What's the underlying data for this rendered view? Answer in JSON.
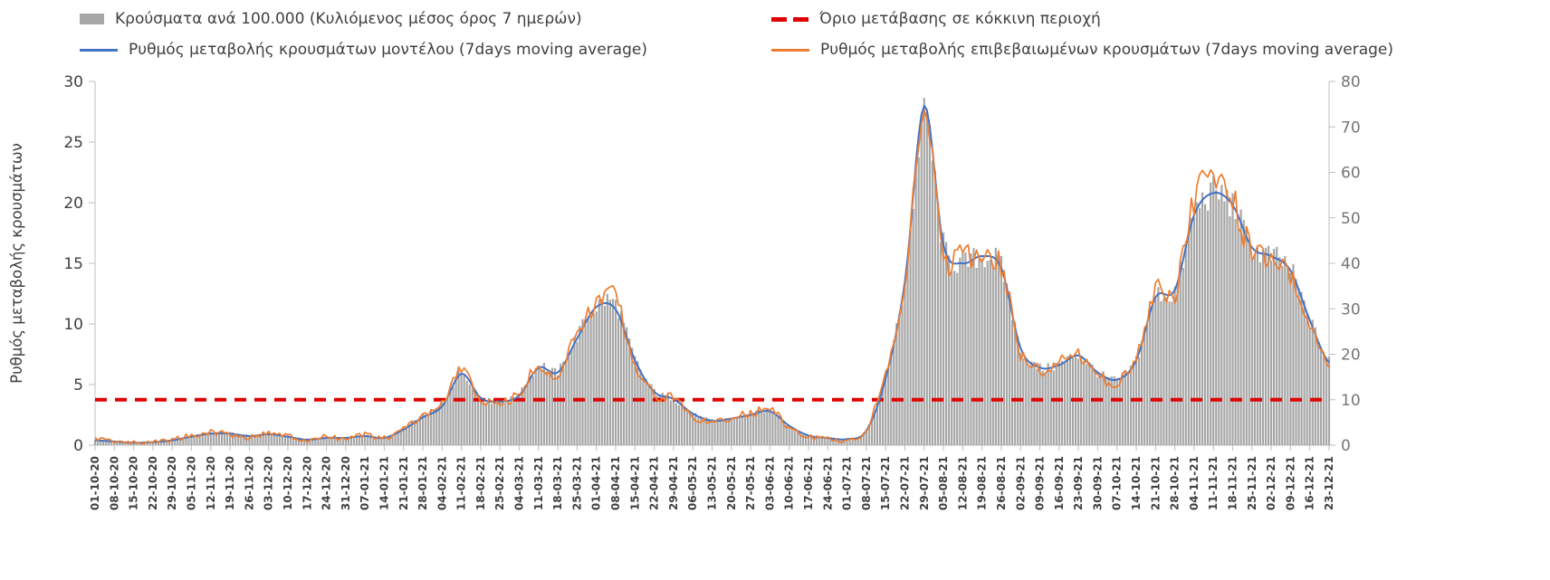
{
  "legend": {
    "bars": "Κρούσματα ανά 100.000 (Κυλιόμενος μέσος όρος 7 ημερών)",
    "threshold": "Όριο μετάβασης σε κόκκινη περιοχή",
    "model": "Ρυθμός μεταβολής κρουσμάτων μοντέλου (7days moving average)",
    "confirmed": "Ρυθμός μεταβολής επιβεβαιωμένων κρουσμάτων (7days moving average)"
  },
  "colors": {
    "bars": "#a6a6a6",
    "model_line": "#4472c4",
    "confirmed_line": "#ed7d31",
    "threshold_line": "#e10000",
    "axis_text": "#404040",
    "right_axis_text": "#757575",
    "axis_line": "#bfbfbf"
  },
  "chart_data": {
    "type": "mixed",
    "subtype": "daily bars (right axis) + two lines (left axis) + dashed threshold",
    "grid": false,
    "legend_position": "top",
    "left_axis": {
      "label": "Ρυθμός μεταβολής κρουσμάτων",
      "range": [
        0,
        30
      ],
      "ticks": [
        0,
        5,
        10,
        15,
        20,
        25,
        30
      ]
    },
    "right_axis": {
      "label": "",
      "range": [
        0,
        80
      ],
      "ticks": [
        0,
        10,
        20,
        30,
        40,
        50,
        60,
        70,
        80
      ]
    },
    "x_tick_interval_days": 7,
    "categories": [
      "01-10-20",
      "08-10-20",
      "15-10-20",
      "22-10-20",
      "29-10-20",
      "05-11-20",
      "12-11-20",
      "19-11-20",
      "26-11-20",
      "03-12-20",
      "10-12-20",
      "17-12-20",
      "24-12-20",
      "31-12-20",
      "07-01-21",
      "14-01-21",
      "21-01-21",
      "28-01-21",
      "04-02-21",
      "11-02-21",
      "18-02-21",
      "25-02-21",
      "04-03-21",
      "11-03-21",
      "18-03-21",
      "25-03-21",
      "01-04-21",
      "08-04-21",
      "15-04-21",
      "22-04-21",
      "29-04-21",
      "06-05-21",
      "13-05-21",
      "20-05-21",
      "27-05-21",
      "03-06-21",
      "10-06-21",
      "17-06-21",
      "24-06-21",
      "01-07-21",
      "08-07-21",
      "15-07-21",
      "22-07-21",
      "29-07-21",
      "05-08-21",
      "12-08-21",
      "19-08-21",
      "26-08-21",
      "02-09-21",
      "09-09-21",
      "16-09-21",
      "23-09-21",
      "30-09-21",
      "07-10-21",
      "14-10-21",
      "21-10-21",
      "28-10-21",
      "04-11-21",
      "11-11-21",
      "18-11-21",
      "25-11-21",
      "02-12-21",
      "09-12-21",
      "16-12-21",
      "23-12-21"
    ],
    "series": [
      {
        "name": "Κρούσματα ανά 100.000 (Κυλιόμενος μέσος όρος 7 ημερών)",
        "type": "bar",
        "axis": "right",
        "color": "#a6a6a6",
        "values": [
          1.2,
          0.9,
          0.7,
          0.8,
          1.2,
          2.0,
          2.8,
          2.7,
          2.2,
          2.5,
          2.0,
          1.4,
          1.8,
          1.7,
          2.2,
          1.8,
          3.6,
          6.5,
          9.0,
          16.0,
          10.5,
          9.8,
          11.2,
          17.5,
          16.2,
          24.0,
          30.5,
          31.0,
          19.0,
          12.0,
          10.2,
          7.0,
          5.5,
          6.0,
          6.8,
          7.6,
          4.2,
          2.2,
          1.6,
          1.4,
          3.2,
          15.0,
          36.0,
          72.0,
          44.0,
          40.0,
          41.5,
          39.0,
          21.5,
          17.0,
          17.8,
          19.8,
          16.0,
          14.5,
          19.0,
          32.5,
          34.0,
          50.5,
          55.5,
          52.5,
          43.5,
          41.5,
          38.5,
          27.5,
          18.5
        ]
      },
      {
        "name": "Ρυθμός μεταβολής κρουσμάτων μοντέλου (7days moving average)",
        "type": "line",
        "axis": "left",
        "color": "#4472c4",
        "values": [
          0.4,
          0.3,
          0.2,
          0.25,
          0.4,
          0.7,
          0.95,
          0.95,
          0.75,
          0.9,
          0.7,
          0.45,
          0.6,
          0.6,
          0.75,
          0.6,
          1.3,
          2.3,
          3.2,
          5.9,
          3.9,
          3.6,
          4.1,
          6.4,
          6.0,
          8.8,
          11.4,
          11.2,
          7.0,
          4.4,
          3.8,
          2.6,
          2.0,
          2.2,
          2.5,
          2.8,
          1.6,
          0.8,
          0.6,
          0.5,
          1.2,
          5.5,
          13.5,
          28.0,
          16.5,
          15.0,
          15.6,
          14.6,
          8.0,
          6.4,
          6.6,
          7.4,
          6.0,
          5.4,
          7.0,
          12.2,
          12.8,
          19.0,
          20.8,
          19.8,
          16.3,
          15.6,
          14.4,
          10.3,
          6.8
        ]
      },
      {
        "name": "Ρυθμός μεταβολής επιβεβαιωμένων κρουσμάτων (7days moving average)",
        "type": "line",
        "axis": "left",
        "color": "#ed7d31",
        "values": [
          0.55,
          0.35,
          0.2,
          0.3,
          0.45,
          0.8,
          1.05,
          0.9,
          0.65,
          1.0,
          0.75,
          0.35,
          0.7,
          0.5,
          0.85,
          0.55,
          1.4,
          2.4,
          3.4,
          6.2,
          3.7,
          3.5,
          4.3,
          6.6,
          5.7,
          9.2,
          11.7,
          12.1,
          6.7,
          4.2,
          3.9,
          2.4,
          1.8,
          2.3,
          2.6,
          3.0,
          1.4,
          0.7,
          0.5,
          0.45,
          1.3,
          6.0,
          13.0,
          27.3,
          15.8,
          15.5,
          15.3,
          14.9,
          7.6,
          6.2,
          6.9,
          7.5,
          5.8,
          5.2,
          7.3,
          12.6,
          12.5,
          20.3,
          21.6,
          20.2,
          15.8,
          15.4,
          13.9,
          9.8,
          7.0
        ]
      },
      {
        "name": "Όριο μετάβασης σε κόκκινη περιοχή",
        "type": "threshold-line",
        "axis": "right",
        "color": "#e10000",
        "style": "dashed",
        "value": 10
      }
    ]
  }
}
